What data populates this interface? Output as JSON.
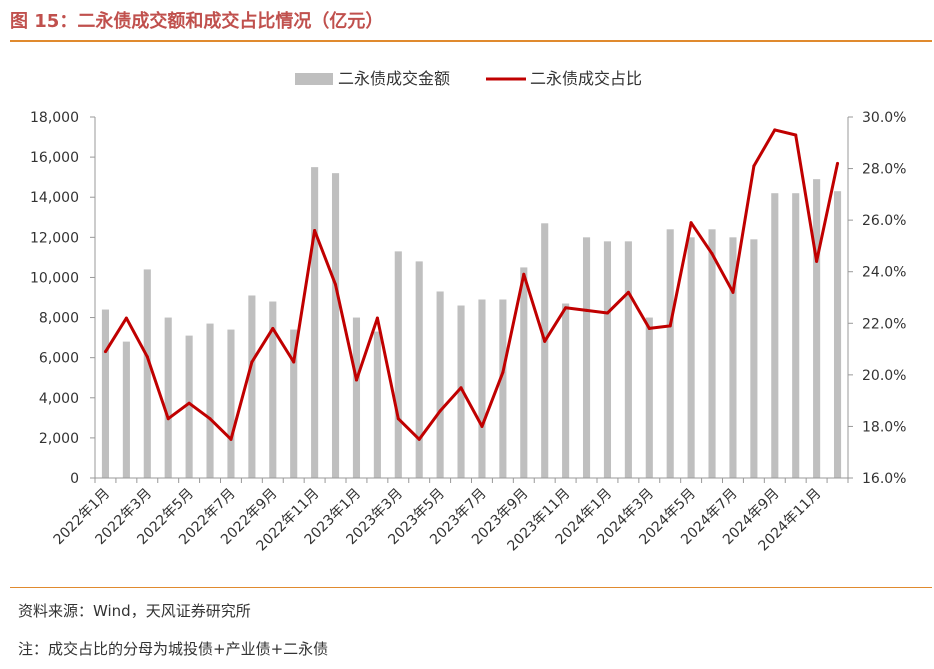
{
  "figure": {
    "title": "图 15：二永债成交额和成交占比情况（亿元）",
    "source": "资料来源：Wind，天风证券研究所",
    "note": "注：成交占比的分母为城投债+产业债+二永债"
  },
  "colors": {
    "bar": "#bfbfbf",
    "line": "#c00000",
    "accent": "#e08a2e",
    "title": "#c0504d"
  },
  "chart_data": {
    "type": "bar",
    "categories": [
      "2022年1月",
      "2022年2月",
      "2022年3月",
      "2022年4月",
      "2022年5月",
      "2022年6月",
      "2022年7月",
      "2022年8月",
      "2022年9月",
      "2022年10月",
      "2022年11月",
      "2022年12月",
      "2023年1月",
      "2023年2月",
      "2023年3月",
      "2023年4月",
      "2023年5月",
      "2023年6月",
      "2023年7月",
      "2023年8月",
      "2023年9月",
      "2023年10月",
      "2023年11月",
      "2023年12月",
      "2024年1月",
      "2024年2月",
      "2024年3月",
      "2024年4月",
      "2024年5月",
      "2024年6月",
      "2024年7月",
      "2024年8月",
      "2024年9月",
      "2024年10月",
      "2024年11月",
      "2024年12月"
    ],
    "tick_labels": [
      "2022年1月",
      "2022年3月",
      "2022年5月",
      "2022年7月",
      "2022年9月",
      "2022年11月",
      "2023年1月",
      "2023年3月",
      "2023年5月",
      "2023年7月",
      "2023年9月",
      "2023年11月",
      "2024年1月",
      "2024年3月",
      "2024年5月",
      "2024年7月",
      "2024年9月",
      "2024年11月"
    ],
    "series": [
      {
        "name": "二永债成交金额",
        "type": "bar",
        "axis": "left",
        "values": [
          8400,
          6800,
          10400,
          8000,
          7100,
          7700,
          7400,
          9100,
          8800,
          7400,
          15500,
          15200,
          8000,
          7300,
          11300,
          10800,
          9300,
          8600,
          8900,
          8900,
          10500,
          12700,
          8700,
          12000,
          11800,
          11800,
          8000,
          12400,
          12000,
          12400,
          12000,
          11900,
          14200,
          14200,
          14900,
          14300
        ]
      },
      {
        "name": "二永债成交占比",
        "type": "line",
        "axis": "right",
        "values": [
          20.9,
          22.2,
          20.7,
          18.3,
          18.9,
          18.3,
          17.5,
          20.5,
          21.8,
          20.5,
          25.6,
          23.5,
          19.8,
          22.2,
          18.3,
          17.5,
          18.6,
          19.5,
          18.0,
          20.1,
          23.9,
          21.3,
          22.6,
          22.5,
          22.4,
          23.2,
          21.8,
          21.9,
          25.9,
          24.7,
          23.2,
          28.1,
          29.5,
          29.3,
          24.4,
          28.2
        ]
      }
    ],
    "y_left": {
      "min": 0,
      "max": 18000,
      "step": 2000,
      "tick_labels": [
        "0",
        "2,000",
        "4,000",
        "6,000",
        "8,000",
        "10,000",
        "12,000",
        "14,000",
        "16,000",
        "18,000"
      ]
    },
    "y_right": {
      "min": 16,
      "max": 30,
      "step": 2,
      "tick_labels": [
        "16.0%",
        "18.0%",
        "20.0%",
        "22.0%",
        "24.0%",
        "26.0%",
        "28.0%",
        "30.0%"
      ]
    },
    "grid": false,
    "legend_position": "top-center"
  }
}
